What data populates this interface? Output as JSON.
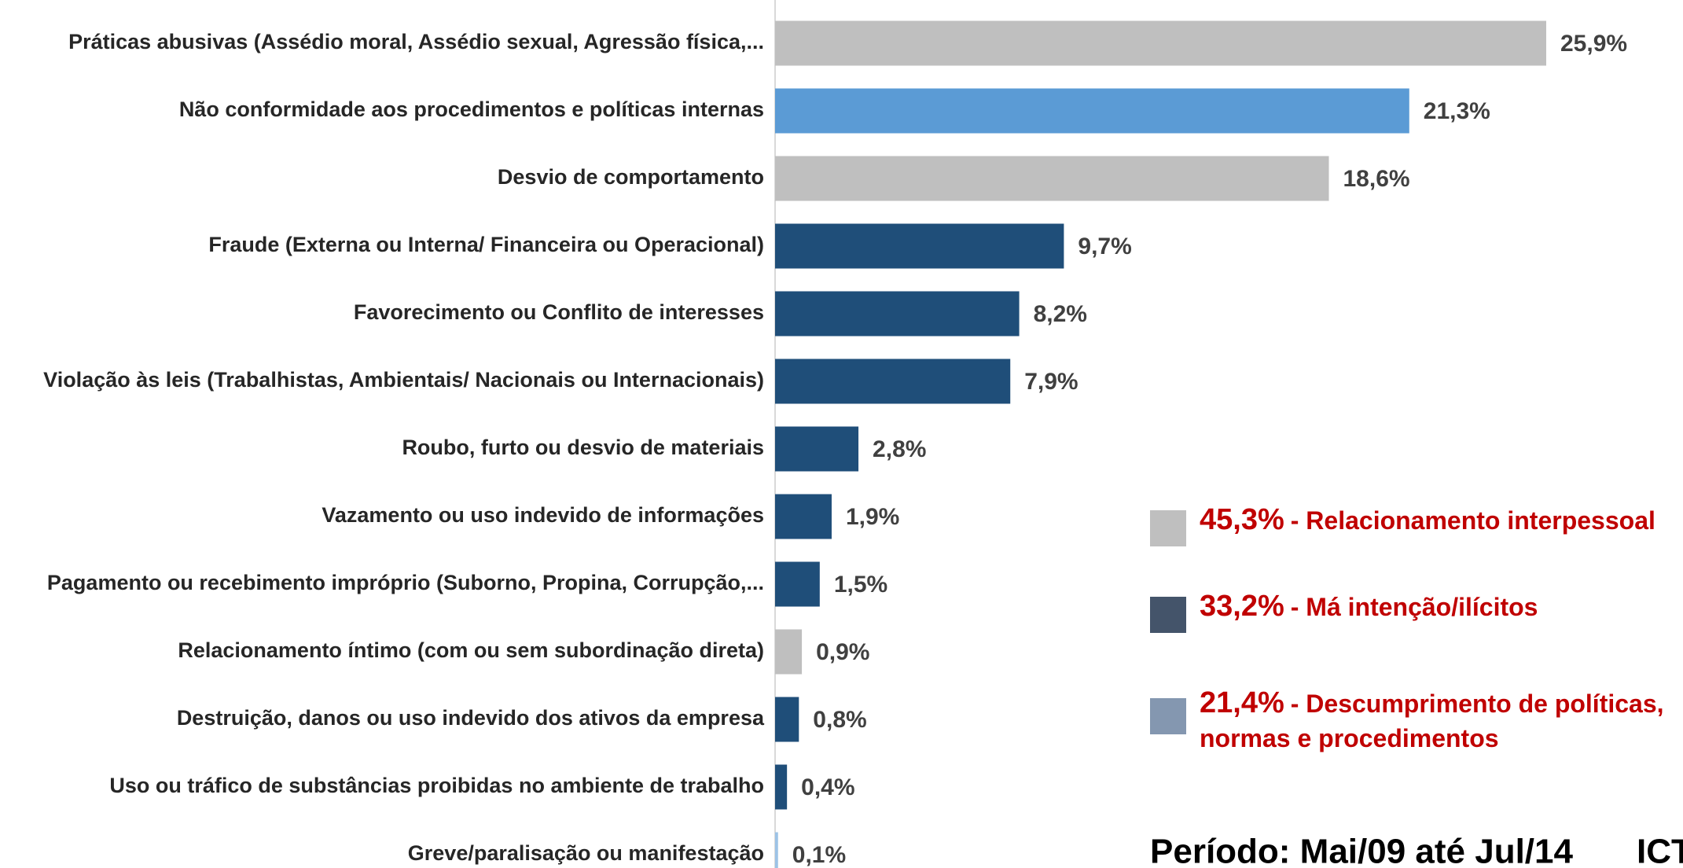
{
  "chart_data": {
    "type": "bar",
    "orientation": "horizontal",
    "categories": [
      "Práticas abusivas (Assédio moral, Assédio sexual, Agressão física,...",
      "Não conformidade aos procedimentos e políticas internas",
      "Desvio de comportamento",
      "Fraude (Externa ou Interna/ Financeira ou Operacional)",
      "Favorecimento ou Conflito de interesses",
      "Violação às leis (Trabalhistas, Ambientais/ Nacionais ou Internacionais)",
      "Roubo, furto ou desvio de materiais",
      "Vazamento ou uso indevido de informações",
      "Pagamento ou recebimento impróprio (Suborno, Propina, Corrupção,...",
      "Relacionamento íntimo (com ou sem subordinação direta)",
      "Destruição, danos ou uso indevido dos ativos da empresa",
      "Uso ou tráfico de substâncias proibidas no ambiente de trabalho",
      "Greve/paralisação ou manifestação"
    ],
    "values": [
      25.9,
      21.3,
      18.6,
      9.7,
      8.2,
      7.9,
      2.8,
      1.9,
      1.5,
      0.9,
      0.8,
      0.4,
      0.1
    ],
    "value_labels": [
      "25,9%",
      "21,3%",
      "18,6%",
      "9,7%",
      "8,2%",
      "7,9%",
      "2,8%",
      "1,9%",
      "1,5%",
      "0,9%",
      "0,8%",
      "0,4%",
      "0,1%"
    ],
    "colors": [
      "#bfbfbf",
      "#5b9bd5",
      "#bfbfbf",
      "#1f4e79",
      "#1f4e79",
      "#1f4e79",
      "#1f4e79",
      "#1f4e79",
      "#1f4e79",
      "#bfbfbf",
      "#1f4e79",
      "#1f4e79",
      "#9dc3e6"
    ],
    "legend": [
      {
        "value": 45.3,
        "label": "45,3%",
        "text": "- Relacionamento interpessoal",
        "color": "#bfbfbf"
      },
      {
        "value": 33.2,
        "label": "33,2%",
        "text": "- Má intenção/ilícitos",
        "color": "#44546a"
      },
      {
        "value": 21.4,
        "label": "21,4%",
        "text": "- Descumprimento de políticas, normas e procedimentos",
        "color": "#8497b0"
      }
    ],
    "footer": "Período: Mai/09 até Jul/14",
    "footer_logo": "ICT"
  }
}
